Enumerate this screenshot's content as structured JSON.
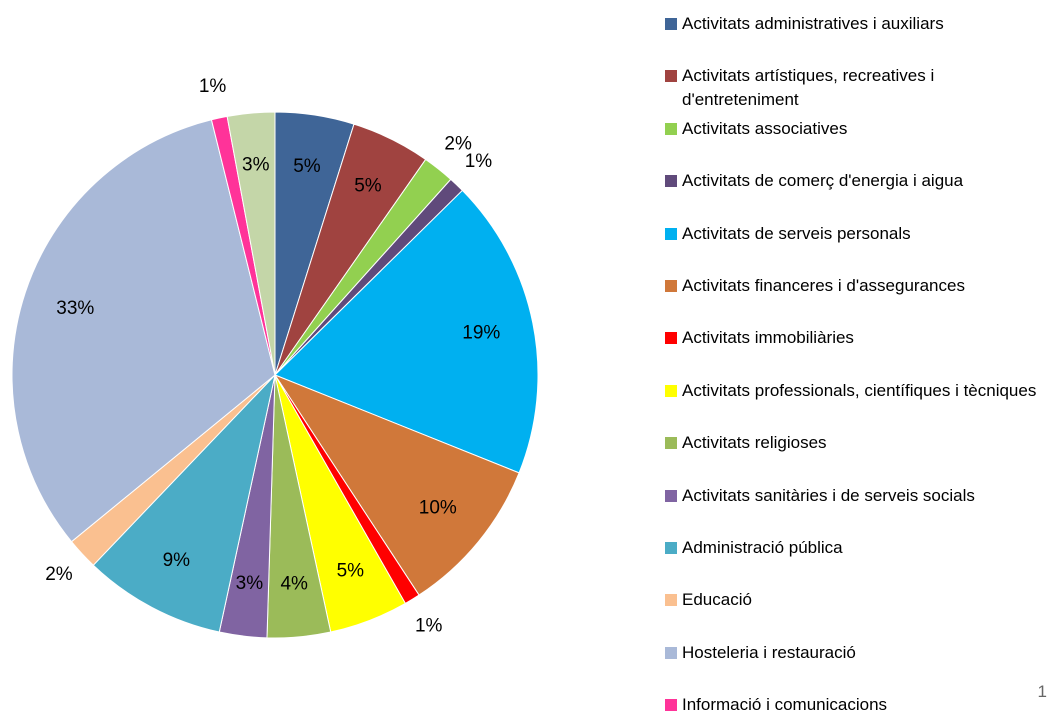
{
  "chart_data": {
    "type": "pie",
    "categories": [
      "Activitats administratives i auxiliars",
      "Activitats artístiques, recreatives i d'entreteniment",
      "Activitats associatives",
      "Activitats de comerç d'energia i aigua",
      "Activitats de serveis personals",
      "Activitats financeres i d'assegurances",
      "Activitats immobiliàries",
      "Activitats professionals, científiques i tècniques",
      "Activitats religioses",
      "Activitats sanitàries i de serveis socials",
      "Administració pública",
      "Educació",
      "Hosteleria i restauració",
      "Informació i comunicacions",
      null
    ],
    "values": [
      5,
      5,
      2,
      1,
      19,
      10,
      1,
      5,
      4,
      3,
      9,
      2,
      33,
      1,
      3
    ],
    "value_labels": [
      "5%",
      "5%",
      "2%",
      "1%",
      "19%",
      "10%",
      "1%",
      "5%",
      "4%",
      "3%",
      "9%",
      "2%",
      "33%",
      "1%",
      "3%"
    ],
    "colors": [
      "#3f6597",
      "#a04340",
      "#92d050",
      "#604a7b",
      "#00b0f0",
      "#d0783a",
      "#ff0000",
      "#ffff00",
      "#9bbb59",
      "#8064a2",
      "#4bacc6",
      "#fac090",
      "#a9b9d8",
      "#ff3399",
      "#c4d6a8"
    ],
    "legend": "right"
  },
  "page_number": "1"
}
